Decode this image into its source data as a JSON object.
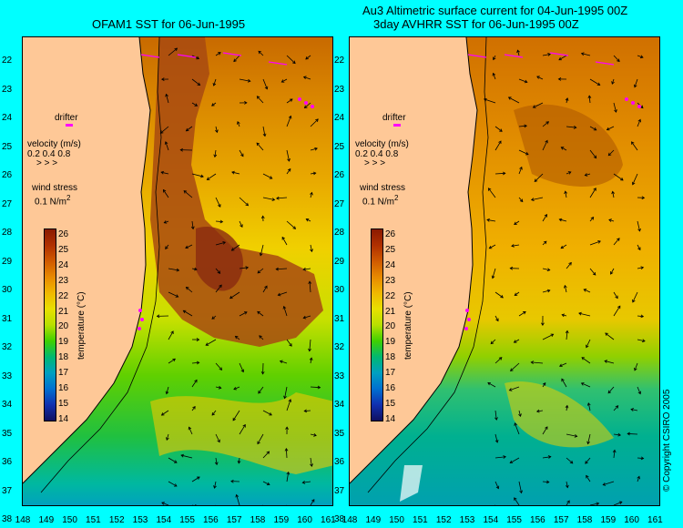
{
  "titles": {
    "left": "OFAM1 SST for 06-Jun-1995",
    "right_line1": "Au3 Altimetric surface current for 04-Jun-1995 00Z",
    "right_line2": "3day AVHRR SST for 06-Jun-1995 00Z"
  },
  "axes": {
    "lat_labels": [
      "22",
      "23",
      "24",
      "25",
      "26",
      "27",
      "28",
      "29",
      "30",
      "31",
      "32",
      "33",
      "34",
      "35",
      "36",
      "37",
      "38"
    ],
    "lon_labels": [
      "148",
      "149",
      "150",
      "151",
      "152",
      "153",
      "154",
      "155",
      "156",
      "157",
      "158",
      "159",
      "160",
      "161"
    ]
  },
  "legend": {
    "drifter": "drifter",
    "velocity_title": "velocity (m/s)",
    "velocity_values": "0.2 0.4 0.8",
    "wind_title": "wind stress",
    "wind_value": "0.1 N/m",
    "wind_exp": "2"
  },
  "colorbar": {
    "title": "temperature (°C)",
    "ticks": [
      "26",
      "25",
      "24",
      "23",
      "22",
      "21",
      "20",
      "19",
      "18",
      "17",
      "16",
      "15",
      "14"
    ],
    "colors": [
      "#8b1a00",
      "#b03000",
      "#d05a00",
      "#e88a00",
      "#f0b800",
      "#e8e000",
      "#b8e000",
      "#40d000",
      "#00b870",
      "#00a0c0",
      "#0070d0",
      "#1030b0",
      "#101060"
    ]
  },
  "copyright": "© Copyright CSIRO 2005"
}
